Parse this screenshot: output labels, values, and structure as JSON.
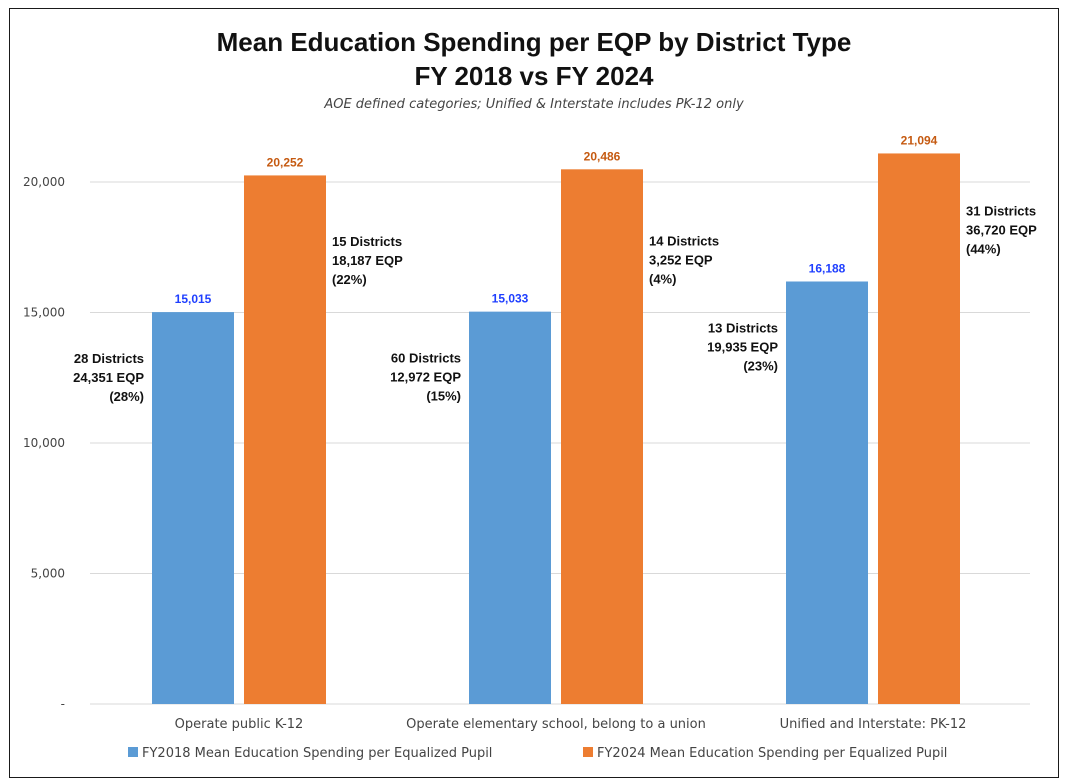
{
  "chart_data": {
    "type": "bar",
    "title": "Mean Education Spending per EQP by District Type",
    "title_line2": "FY 2018 vs FY 2024",
    "subtitle": "AOE defined categories; Unified & Interstate includes PK-12 only",
    "categories": [
      "Operate public K-12",
      "Operate elementary school, belong to a union",
      "Unified and Interstate: PK-12"
    ],
    "series": [
      {
        "name": "FY2018 Mean Education Spending per Equalized Pupil",
        "color": "#5b9bd5",
        "label_color": "#1f3fff",
        "values": [
          15015,
          15033,
          16188
        ],
        "value_labels": [
          "15,015",
          "15,033",
          "16,188"
        ],
        "annotations": [
          [
            "28 Districts",
            "24,351 EQP",
            "(28%)"
          ],
          [
            "60 Districts",
            "12,972 EQP",
            "(15%)"
          ],
          [
            "13 Districts",
            "19,935 EQP",
            "(23%)"
          ]
        ]
      },
      {
        "name": "FY2024 Mean Education Spending per Equalized Pupil",
        "color": "#ed7d31",
        "label_color": "#c55a11",
        "values": [
          20252,
          20486,
          21094
        ],
        "value_labels": [
          "20,252",
          "20,486",
          "21,094"
        ],
        "annotations": [
          [
            "15 Districts",
            "18,187 EQP",
            "(22%)"
          ],
          [
            "14 Districts",
            "3,252 EQP",
            "(4%)"
          ],
          [
            "31 Districts",
            "36,720 EQP",
            "(44%)"
          ]
        ]
      }
    ],
    "y_ticks": [
      0,
      5000,
      10000,
      15000,
      20000
    ],
    "y_tick_labels": [
      "-",
      "5,000",
      "10,000",
      "15,000",
      "20,000"
    ],
    "ylim": [
      0,
      24000
    ],
    "grid": true,
    "legend_position": "bottom"
  }
}
